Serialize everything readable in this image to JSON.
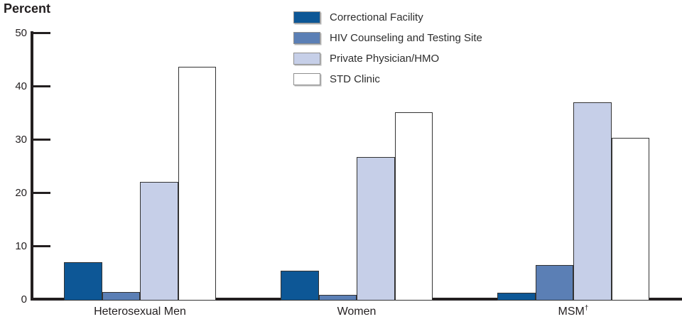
{
  "chart_data": {
    "type": "bar",
    "title": "",
    "y_axis_title": "Percent",
    "xlabel": "",
    "ylabel": "Percent",
    "ylim": [
      0,
      50
    ],
    "yticks": [
      0,
      10,
      20,
      30,
      40,
      50
    ],
    "grid": false,
    "legend_position": "top-center",
    "categories": [
      {
        "text": "Heterosexual Men",
        "sup": ""
      },
      {
        "text": "Women",
        "sup": ""
      },
      {
        "text": "MSM",
        "sup": "†"
      }
    ],
    "series": [
      {
        "name": "Correctional Facility",
        "color": "#0d5796",
        "values": [
          7.0,
          5.4,
          1.3
        ]
      },
      {
        "name": "HIV Counseling and Testing Site",
        "color": "#5b7fb5",
        "values": [
          1.4,
          0.9,
          6.5
        ]
      },
      {
        "name": "Private Physician/HMO",
        "color": "#c6cfe8",
        "values": [
          22.1,
          26.7,
          37.0
        ]
      },
      {
        "name": "STD Clinic",
        "color": "#ffffff",
        "values": [
          43.7,
          35.2,
          30.3
        ]
      }
    ],
    "colors": {
      "axis": "#231f20",
      "text": "#231f20",
      "bar_border": "#333333",
      "legend_swatch_border": "#8f8f8f"
    }
  }
}
